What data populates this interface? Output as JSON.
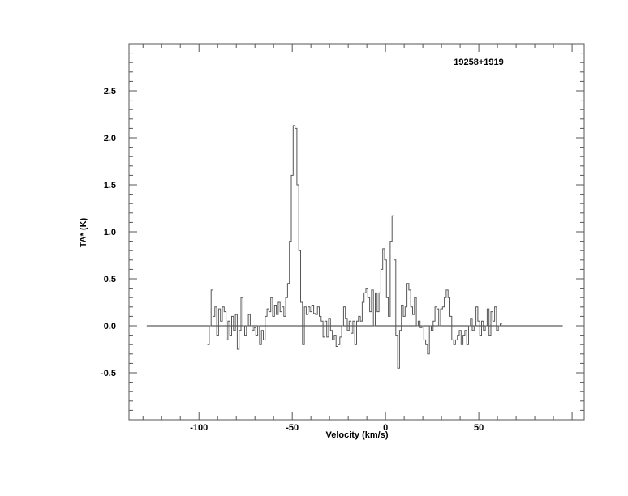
{
  "chart_data": {
    "type": "line",
    "style": "histogram-step",
    "title": "19258+1919",
    "xlabel": "Velocity (km/s)",
    "ylabel": "TA* (K)",
    "xlim": [
      -137.5,
      106.5
    ],
    "ylim": [
      -1.0,
      3.0
    ],
    "x_ticks": [
      -100,
      -50,
      0,
      50
    ],
    "x_tick_labels": [
      "-100",
      "-50",
      "0",
      "50"
    ],
    "y_ticks": [
      -0.5,
      0.0,
      0.5,
      1.0,
      1.5,
      2.0,
      2.5
    ],
    "y_tick_labels": [
      "-0.5",
      "0.0",
      "0.5",
      "1.0",
      "1.5",
      "2.0",
      "2.5"
    ],
    "grid": false,
    "legend": "none",
    "baseline": {
      "y": 0.0,
      "x_range": [
        -128,
        95
      ]
    },
    "line_color": "#555555",
    "x_start": -95,
    "x_step": 1,
    "values": [
      -0.2,
      0.0,
      0.38,
      0.1,
      0.2,
      -0.1,
      0.18,
      0.05,
      0.2,
      0.15,
      -0.15,
      0.05,
      -0.1,
      0.1,
      -0.05,
      0.12,
      -0.25,
      -0.05,
      0.3,
      0.0,
      -0.1,
      0.0,
      0.12,
      0.0,
      -0.05,
      -0.02,
      -0.1,
      0.0,
      -0.2,
      -0.05,
      -0.15,
      0.1,
      0.18,
      0.15,
      0.3,
      0.1,
      0.22,
      0.12,
      0.25,
      0.15,
      0.2,
      0.1,
      0.3,
      0.45,
      0.9,
      1.6,
      2.13,
      2.1,
      1.5,
      0.8,
      0.25,
      -0.2,
      0.2,
      0.12,
      0.2,
      0.15,
      0.22,
      0.13,
      0.12,
      0.2,
      0.1,
      0.05,
      -0.12,
      0.05,
      -0.12,
      0.08,
      -0.05,
      -0.15,
      -0.1,
      -0.22,
      -0.2,
      -0.12,
      0.0,
      0.2,
      0.08,
      -0.05,
      0.05,
      -0.08,
      0.05,
      -0.2,
      0.05,
      0.1,
      0.05,
      0.25,
      0.35,
      0.4,
      0.3,
      0.15,
      0.38,
      0.0,
      0.35,
      0.15,
      0.35,
      0.6,
      0.82,
      0.7,
      0.3,
      0.1,
      0.9,
      1.17,
      0.7,
      -0.1,
      -0.45,
      -0.05,
      0.22,
      0.1,
      0.2,
      0.45,
      0.38,
      0.2,
      0.12,
      0.3,
      0.0,
      0.05,
      -0.02,
      0.0,
      -0.15,
      -0.2,
      -0.3,
      0.0,
      -0.05,
      0.05,
      0.2,
      0.18,
      0.0,
      0.18,
      0.2,
      0.3,
      0.38,
      0.3,
      0.1,
      -0.15,
      -0.2,
      -0.15,
      -0.1,
      -0.05,
      -0.2,
      -0.1,
      -0.05,
      -0.2,
      0.0,
      0.08,
      -0.05,
      0.0,
      0.2,
      0.05,
      -0.1,
      0.05,
      -0.05,
      0.0,
      0.18,
      -0.1,
      0.15,
      0.05,
      0.2,
      -0.05,
      0.0,
      0.02
    ]
  }
}
